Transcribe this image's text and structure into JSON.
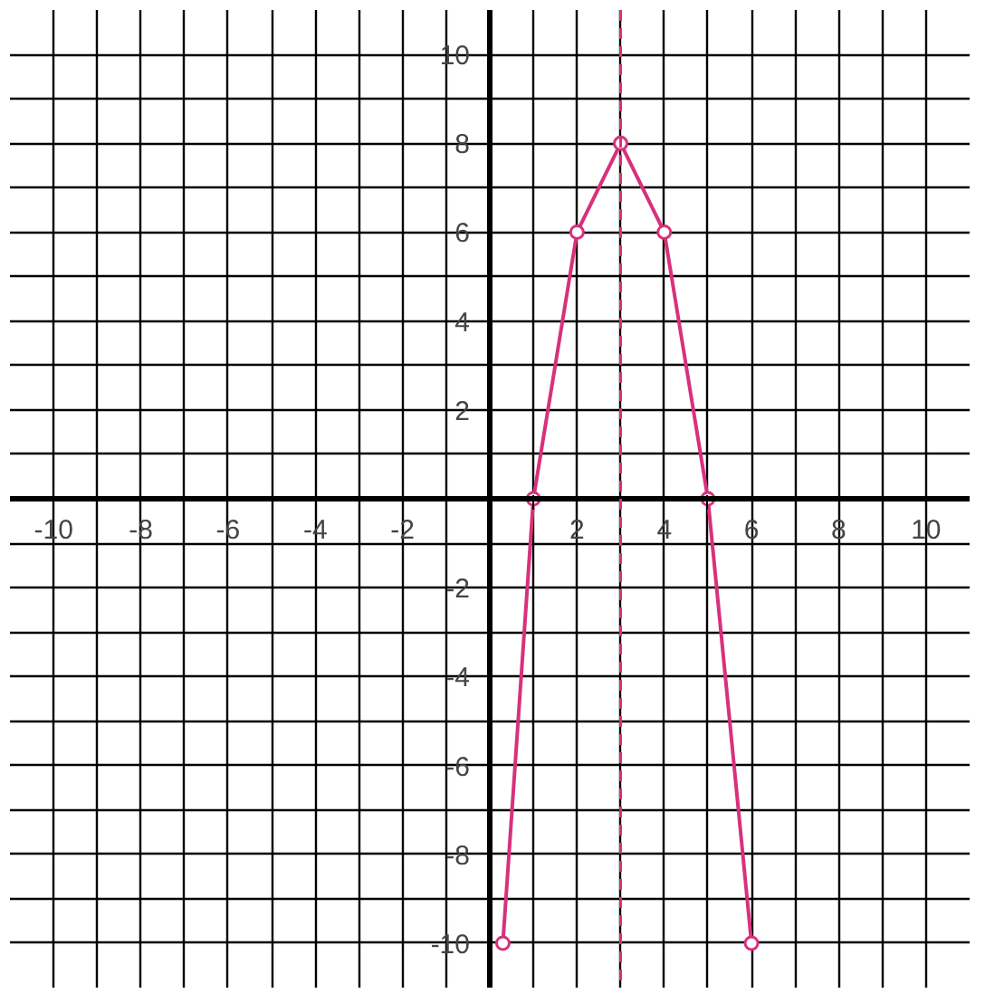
{
  "chart_data": {
    "type": "line",
    "x": [
      0.3,
      1,
      2,
      3,
      4,
      5,
      6
    ],
    "series": [
      {
        "color": "#d8317c",
        "values": [
          -10,
          0,
          6,
          8,
          6,
          0,
          -10
        ]
      }
    ],
    "marker": "circle",
    "line_style": "solid",
    "grid": true,
    "xlim": [
      -11,
      11
    ],
    "ylim": [
      -11,
      11
    ],
    "xticks": [
      -10,
      {
        "value": -9,
        "label": null
      },
      -8,
      {
        "value": -7,
        "label": null
      },
      -6,
      {
        "value": -5,
        "label": null
      },
      -4,
      {
        "value": -3,
        "label": null
      },
      -2,
      {
        "value": -1,
        "label": null
      },
      {
        "value": 0,
        "label": null
      },
      {
        "value": 1,
        "label": null
      },
      2,
      {
        "value": 3,
        "label": null
      },
      4,
      {
        "value": 5,
        "label": null
      },
      6,
      {
        "value": 7,
        "label": null
      },
      8,
      {
        "value": 9,
        "label": null
      },
      10
    ],
    "yticks": [
      -10,
      {
        "value": -9,
        "label": null
      },
      -8,
      {
        "value": -7,
        "label": null
      },
      -6,
      {
        "value": -5,
        "label": null
      },
      -4,
      {
        "value": -3,
        "label": null
      },
      -2,
      {
        "value": -1,
        "label": null
      },
      {
        "value": 0,
        "label": null
      },
      {
        "value": 1,
        "label": null
      },
      2,
      {
        "value": 3,
        "label": null
      },
      4,
      {
        "value": 5,
        "label": null
      },
      6,
      {
        "value": 7,
        "label": null
      },
      8,
      {
        "value": 9,
        "label": null
      },
      10
    ],
    "ref_lines": [
      {
        "axis": "x",
        "value": 3,
        "color": "#d8317c",
        "line_style": "dashed"
      }
    ]
  }
}
